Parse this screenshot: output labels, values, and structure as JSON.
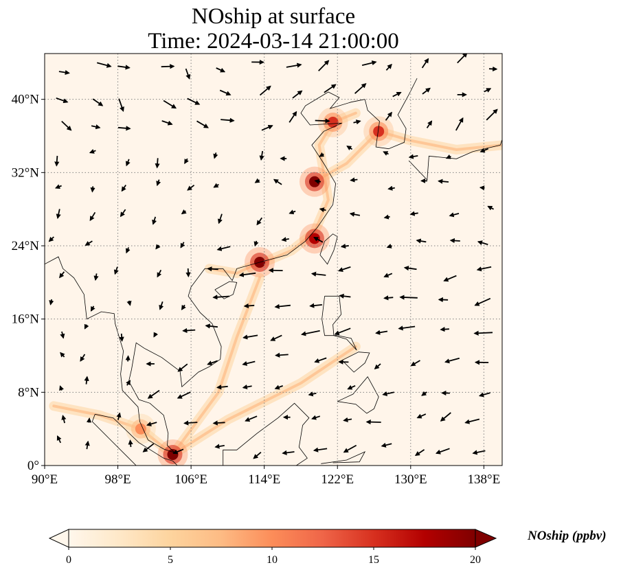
{
  "title": {
    "line1": "NOship at surface",
    "line2": "Time: 2024-03-14 21:00:00"
  },
  "map": {
    "lon_range": [
      90,
      140
    ],
    "lat_range": [
      0,
      45
    ],
    "lon_ticks": [
      90,
      98,
      106,
      114,
      122,
      130,
      138
    ],
    "lat_ticks": [
      0,
      8,
      16,
      24,
      32,
      40
    ],
    "lon_tick_labels": [
      "90°E",
      "98°E",
      "106°E",
      "114°E",
      "122°E",
      "130°E",
      "138°E"
    ],
    "lat_tick_labels": [
      "0°",
      "8°N",
      "16°N",
      "24°N",
      "32°N",
      "40°N"
    ],
    "gridlines": "dotted"
  },
  "colorbar": {
    "label": "NOship (ppbv)",
    "ticks": [
      0,
      5,
      10,
      15,
      20
    ],
    "tick_labels": [
      "0",
      "5",
      "10",
      "15",
      "20"
    ],
    "range": [
      0,
      20
    ],
    "colormap": "OrRd",
    "colors": [
      "#fff7ec",
      "#fee8c8",
      "#fdd49e",
      "#fdbb84",
      "#fc8d59",
      "#ef6548",
      "#d7301f",
      "#b30000",
      "#7f0000"
    ],
    "extend": "both"
  },
  "colors": {
    "background": "#fff5ea",
    "coast": "#000000",
    "grid": "#808080",
    "arrow": "#000000"
  },
  "hotspots": [
    {
      "name": "yangtze-delta",
      "lon": 119.5,
      "lat": 31.0,
      "value": 20
    },
    {
      "name": "pearl-river-delta",
      "lon": 113.5,
      "lat": 22.2,
      "value": 20
    },
    {
      "name": "taiwan-strait",
      "lon": 119.5,
      "lat": 24.8,
      "value": 18
    },
    {
      "name": "bohai-yellow-sea",
      "lon": 121.5,
      "lat": 37.5,
      "value": 14
    },
    {
      "name": "korea-strait",
      "lon": 126.5,
      "lat": 36.5,
      "value": 14
    },
    {
      "name": "singapore-strait",
      "lon": 104.0,
      "lat": 1.2,
      "value": 20
    },
    {
      "name": "malacca-strait",
      "lon": 100.5,
      "lat": 4.0,
      "value": 9
    }
  ]
}
